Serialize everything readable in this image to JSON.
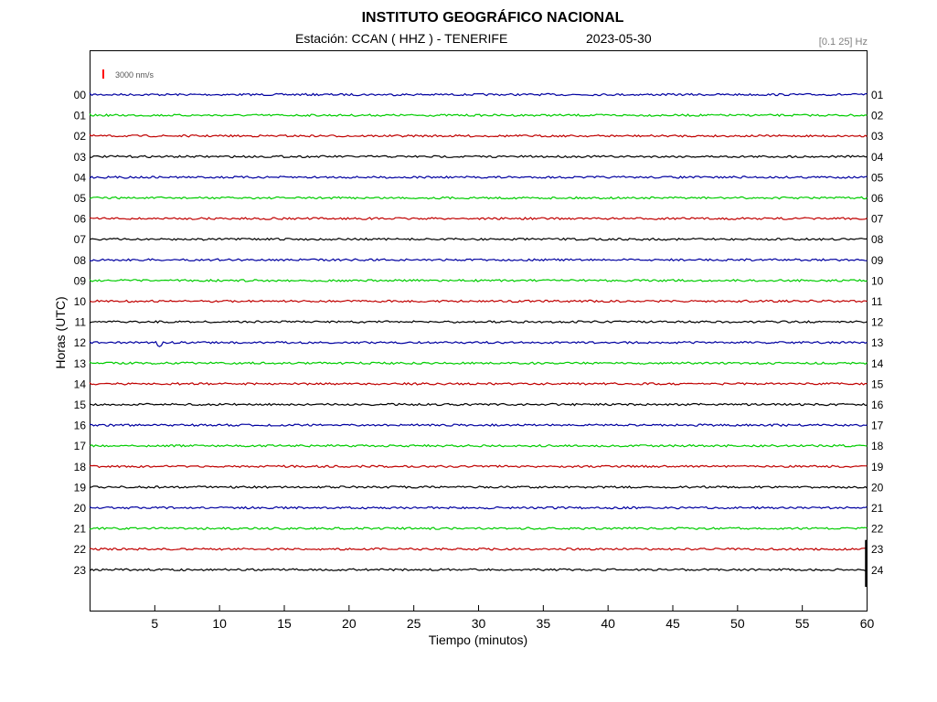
{
  "header": {
    "title": "INSTITUTO GEOGRÁFICO NACIONAL",
    "station": "Estación:  CCAN ( HHZ ) - TENERIFE",
    "date": "2023-05-30",
    "filter": "[0.1 25] Hz"
  },
  "chart_data": {
    "type": "line",
    "title": "INSTITUTO GEOGRÁFICO NACIONAL",
    "xlabel": "Tiempo (minutos)",
    "ylabel": "Horas (UTC)",
    "xlim": [
      0,
      60
    ],
    "x_ticks": [
      "5",
      "10",
      "15",
      "20",
      "25",
      "30",
      "35",
      "40",
      "45",
      "50",
      "55",
      "60"
    ],
    "left_labels": [
      "00",
      "01",
      "02",
      "03",
      "04",
      "05",
      "06",
      "07",
      "08",
      "09",
      "10",
      "11",
      "12",
      "13",
      "14",
      "15",
      "16",
      "17",
      "18",
      "19",
      "20",
      "21",
      "22",
      "23"
    ],
    "right_labels": [
      "01",
      "02",
      "03",
      "04",
      "05",
      "06",
      "07",
      "08",
      "09",
      "10",
      "11",
      "12",
      "13",
      "14",
      "15",
      "16",
      "17",
      "18",
      "19",
      "20",
      "21",
      "22",
      "23",
      "24"
    ],
    "trace_colors": [
      "#0000a0",
      "#00cc00",
      "#c00000",
      "#000000"
    ],
    "scale_label": "3000 nm/s",
    "scale_color": "#ff0000",
    "events": [
      {
        "hour": "12",
        "minute": 5.4
      }
    ],
    "grid": false
  }
}
